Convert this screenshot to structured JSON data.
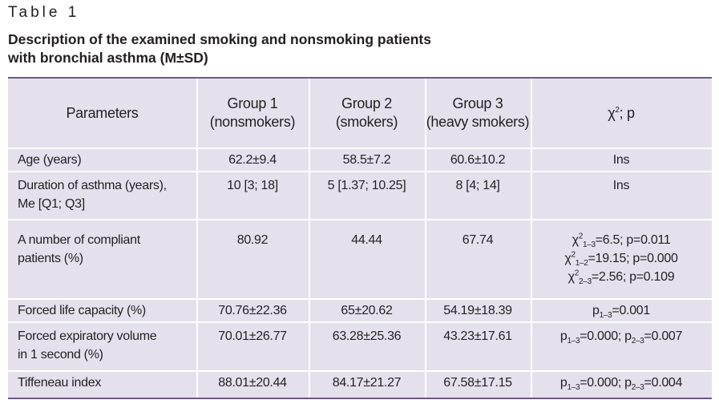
{
  "table_label": "Table 1",
  "caption": {
    "line1": "Description of the examined smoking and nonsmoking patients",
    "line2": "with bronchial asthma (M±SD)"
  },
  "header": {
    "parameters": "Parameters",
    "group1_line1": "Group 1",
    "group1_line2": "(nonsmokers)",
    "group2_line1": "Group 2",
    "group2_line2": "(smokers)",
    "group3_line1": "Group 3",
    "group3_line2": "(heavy smokers)",
    "chi_base": "χ",
    "chi_sup": "2",
    "chi_rest": "; p"
  },
  "rows": [
    {
      "param_line1": "Age (years)",
      "g1": "62.2±9.4",
      "g2": "58.5±7.2",
      "g3": "60.6±10.2",
      "stat": "Ins"
    },
    {
      "param_line1": "Duration of asthma (years),",
      "param_line2": "Me [Q1; Q3]",
      "g1": "10 [3; 18]",
      "g2": "5 [1.37; 10.25]",
      "g3": "8 [4; 14]",
      "stat": "Ins"
    },
    {
      "param_line1": "A number of compliant",
      "param_line2": "patients (%)",
      "g1": "80.92",
      "g2": "44.44",
      "g3": "67.74",
      "stat_lines": [
        {
          "base": "χ",
          "sup": "2",
          "sub": "1–3",
          "rest": "=6.5; p=0.011"
        },
        {
          "base": "χ",
          "sup": "2",
          "sub": "1–2",
          "rest": "=19.15; p=0.000"
        },
        {
          "base": "χ",
          "sup": "2",
          "sub": "2–3",
          "rest": "=2.56; p=0.109"
        }
      ]
    },
    {
      "param_line1": "Forced life capacity (%)",
      "g1": "70.76±22.36",
      "g2": "65±20.62",
      "g3": "54.19±18.39",
      "stat_parts": [
        {
          "p": "p",
          "sub": "1–3",
          "rest": "=0.001"
        }
      ]
    },
    {
      "param_line1": "Forced expiratory volume",
      "param_line2": "in 1 second (%)",
      "g1": "70.01±26.77",
      "g2": "63.28±25.36",
      "g3": "43.23±17.61",
      "stat_parts": [
        {
          "p": "p",
          "sub": "1–3",
          "rest": "=0.000; "
        },
        {
          "p": "p",
          "sub": "2–3",
          "rest": "=0.007"
        }
      ]
    },
    {
      "param_line1": "Tiffeneau index",
      "g1": "88.01±20.44",
      "g2": "84.17±21.27",
      "g3": "67.58±17.15",
      "stat_parts": [
        {
          "p": "p",
          "sub": "1–3",
          "rest": "=0.000; "
        },
        {
          "p": "p",
          "sub": "2–3",
          "rest": "=0.004"
        }
      ]
    }
  ]
}
